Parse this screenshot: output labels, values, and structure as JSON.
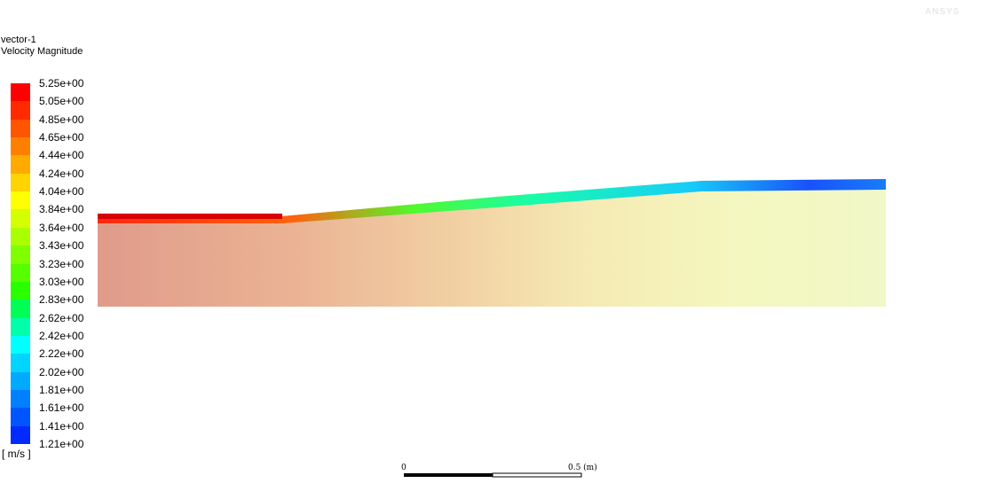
{
  "title_line1": "vector-1",
  "title_line2": "Velocity Magnitude",
  "units": "[ m/s ]",
  "logo_text": "ANSYS",
  "scale_bar": {
    "start_label": "0",
    "end_label": "0.5 (m)"
  },
  "chart_data": {
    "type": "heatmap",
    "title": "vector-1",
    "subtitle": "Velocity Magnitude",
    "colorbar_label": "[ m/s ]",
    "colorbar_min": 1.21,
    "colorbar_max": 5.25,
    "colorbar_ticks": [
      "5.25e+00",
      "5.05e+00",
      "4.85e+00",
      "4.65e+00",
      "4.44e+00",
      "4.24e+00",
      "4.04e+00",
      "3.84e+00",
      "3.64e+00",
      "3.43e+00",
      "3.23e+00",
      "3.03e+00",
      "2.83e+00",
      "2.62e+00",
      "2.42e+00",
      "2.22e+00",
      "2.02e+00",
      "1.81e+00",
      "1.61e+00",
      "1.41e+00",
      "1.21e+00"
    ],
    "colorbar_colors": [
      "#ff0000",
      "#ff2a00",
      "#ff5500",
      "#ff8000",
      "#ffaa00",
      "#ffd400",
      "#ffff00",
      "#d4ff00",
      "#aaff00",
      "#80ff00",
      "#55ff00",
      "#2aff00",
      "#00ff55",
      "#00ffaa",
      "#00ffff",
      "#00d4ff",
      "#00aaff",
      "#0080ff",
      "#0055ff",
      "#002aff"
    ],
    "scale_units": "m"
  }
}
